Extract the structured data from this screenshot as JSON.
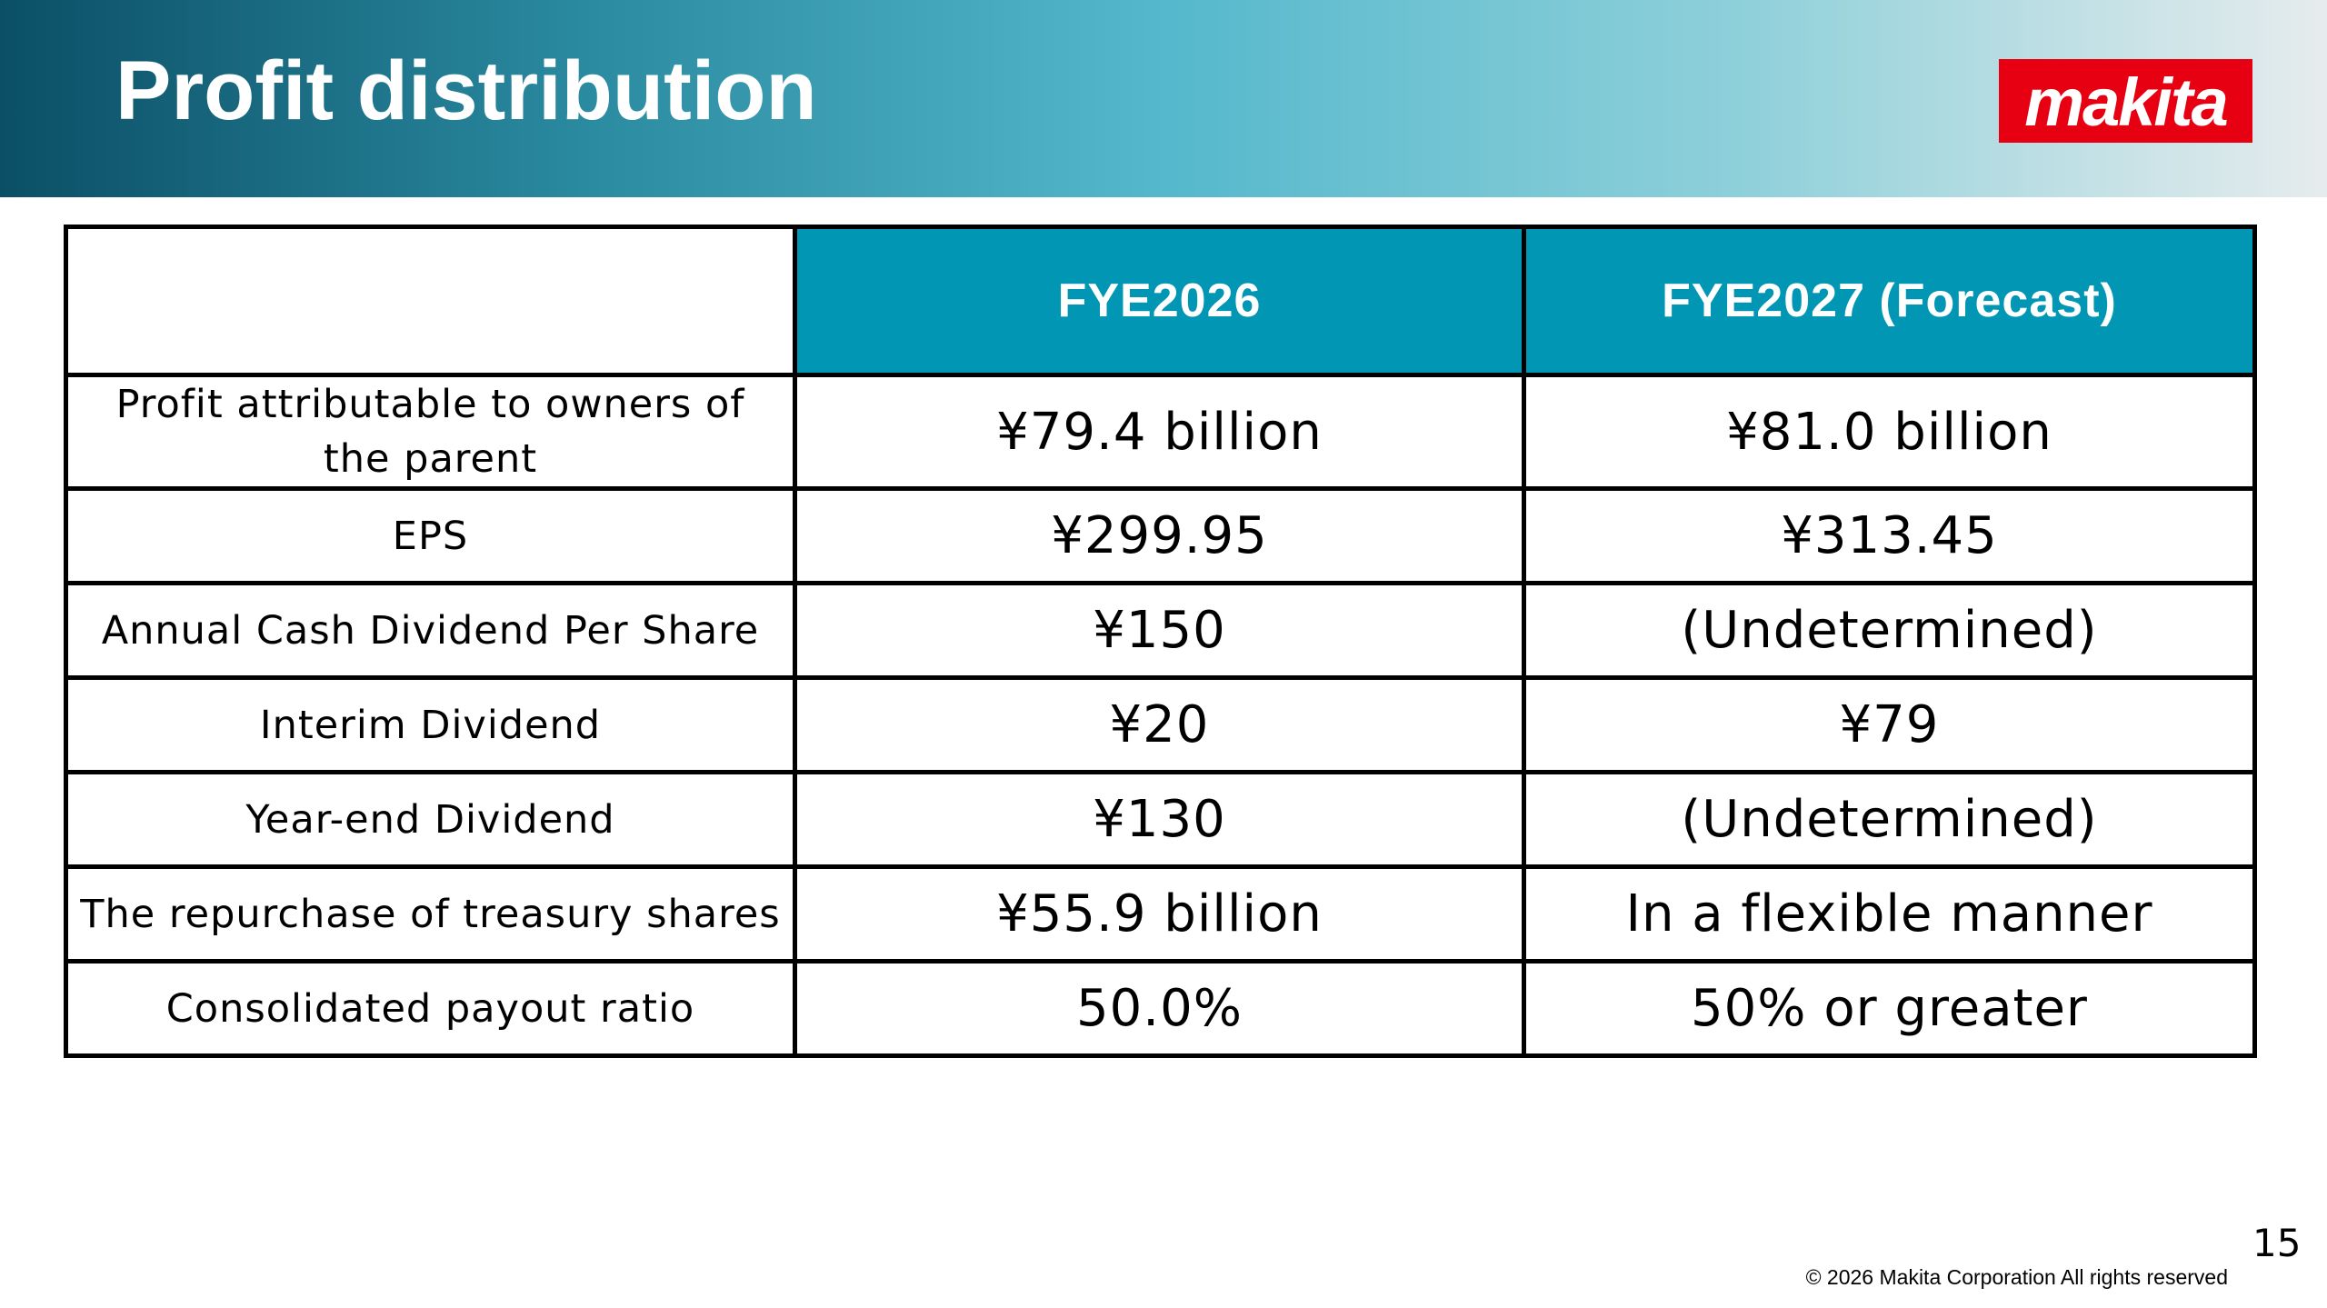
{
  "header": {
    "title": "Profit distribution",
    "logo": "makita"
  },
  "table": {
    "columns": [
      "FYE2026",
      "FYE2027 (Forecast)"
    ],
    "rows": [
      [
        "Profit attributable to owners of the parent",
        "¥79.4 billion",
        "¥81.0 billion"
      ],
      [
        "EPS",
        "¥299.95",
        "¥313.45"
      ],
      [
        "Annual Cash Dividend Per Share",
        "¥150",
        "(Undetermined)"
      ],
      [
        "Interim Dividend",
        "¥20",
        "¥79"
      ],
      [
        "Year-end Dividend",
        "¥130",
        "(Undetermined)"
      ],
      [
        "The repurchase of treasury shares",
        "¥55.9 billion",
        "In a flexible manner"
      ],
      [
        "Consolidated payout ratio",
        "50.0%",
        "50% or greater"
      ]
    ]
  },
  "footer": {
    "page_number": 15,
    "copyright": "© 2026  Makita Corporation All rights reserved"
  }
}
